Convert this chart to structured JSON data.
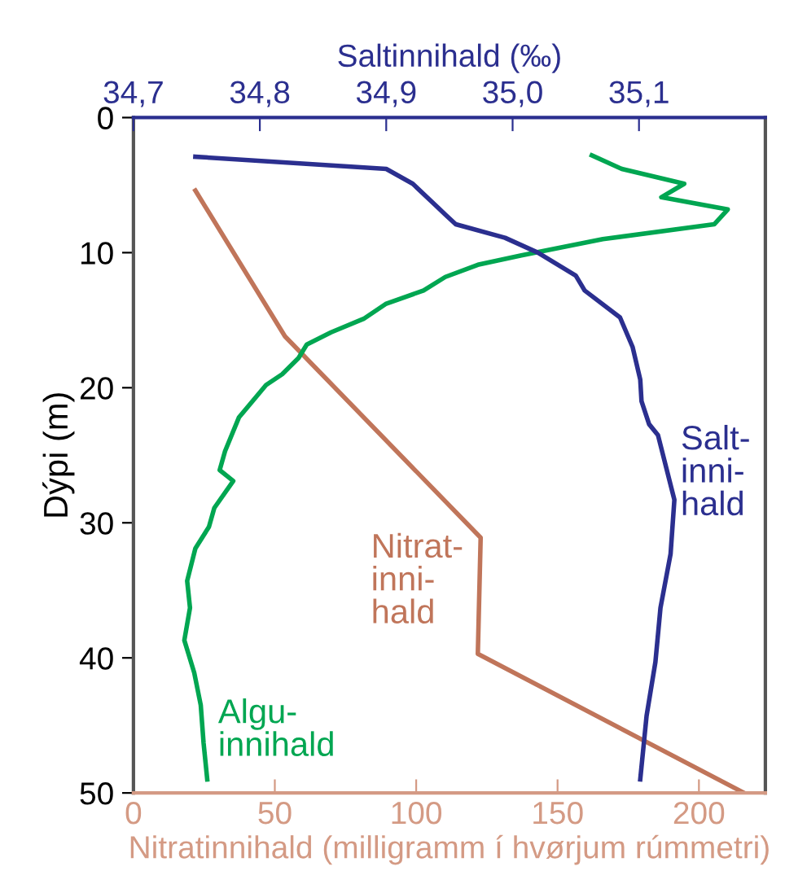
{
  "chart_data": {
    "type": "line",
    "xlabel": "Nitratinnihald (milligramm í hvørjum rúmmetri)",
    "x2label": "Saltinnihald (‰)",
    "ylabel": "Dýpi (m)",
    "xlim": [
      0,
      223.5
    ],
    "xticks": [
      0,
      50,
      100,
      150,
      200
    ],
    "x2lim": [
      34.7,
      35.2
    ],
    "x2ticks": [
      {
        "value": 34.7,
        "label": "34,7"
      },
      {
        "value": 34.8,
        "label": "34,8"
      },
      {
        "value": 34.9,
        "label": "34,9"
      },
      {
        "value": 35.0,
        "label": "35,0"
      },
      {
        "value": 35.1,
        "label": "35,1"
      }
    ],
    "ylim": [
      50,
      0
    ],
    "yticks": [
      0,
      10,
      20,
      30,
      40,
      50
    ],
    "grid": false,
    "legend": false,
    "marker": "none",
    "line_style": "solid",
    "series": [
      {
        "name": "Salt-\ninni-\nhald",
        "color": "#2b2f8f",
        "axis": "x2",
        "x": [
          34.749,
          34.9,
          34.921,
          34.947,
          34.955,
          34.994,
          35.02,
          35.05,
          35.057,
          35.085,
          35.095,
          35.101,
          35.102,
          35.108,
          35.115,
          35.128,
          35.125,
          35.117,
          35.113,
          35.106,
          35.101
        ],
        "values": [
          2.9,
          3.8,
          4.9,
          7.2,
          7.9,
          8.9,
          10.0,
          11.7,
          12.8,
          14.8,
          17.0,
          19.4,
          21.0,
          22.7,
          23.5,
          28.3,
          32.3,
          36.3,
          40.3,
          44.3,
          49.0
        ]
      },
      {
        "name": "Nitrat-\ninni-\nhald",
        "color": "#c0755a",
        "x": [
          21.9,
          53.6,
          122.8,
          121.8,
          216.0
        ],
        "values": [
          5.4,
          16.2,
          31.1,
          39.7,
          50.0
        ]
      },
      {
        "name": "Algu-\ninnihald",
        "color": "#00a651",
        "x": [
          162.1,
          172.7,
          194.8,
          186.7,
          210.2,
          205.4,
          166.0,
          137.2,
          121.8,
          110.3,
          102.6,
          89.2,
          81.4,
          69.9,
          61.3,
          58.4,
          52.6,
          46.9,
          37.3,
          32.4,
          30.5,
          35.3,
          28.6,
          26.7,
          21.9,
          19.0,
          20.0,
          18.0,
          21.5,
          23.8,
          24.8,
          26.1
        ],
        "values": [
          2.8,
          3.8,
          4.9,
          5.9,
          6.8,
          7.9,
          9.0,
          10.2,
          10.9,
          11.8,
          12.8,
          13.8,
          14.9,
          15.9,
          16.8,
          17.8,
          19.0,
          19.8,
          22.2,
          24.7,
          26.1,
          26.9,
          28.9,
          30.3,
          31.9,
          34.3,
          36.3,
          38.7,
          41.1,
          43.5,
          46.3,
          49.0
        ]
      }
    ]
  }
}
